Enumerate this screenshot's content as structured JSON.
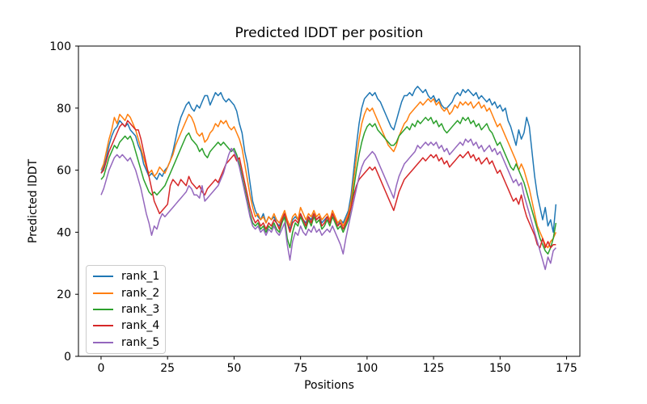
{
  "chart_data": {
    "type": "line",
    "title": "Predicted lDDT per position",
    "xlabel": "Positions",
    "ylabel": "Predicted lDDT",
    "xlim": [
      -8.5,
      180
    ],
    "ylim": [
      0,
      100
    ],
    "xticks": [
      0,
      25,
      50,
      75,
      100,
      125,
      150,
      175
    ],
    "yticks": [
      0,
      20,
      40,
      60,
      80,
      100
    ],
    "grid": false,
    "legend_position": "lower left",
    "x_start": 0,
    "x_step": 1,
    "series": [
      {
        "name": "rank_1",
        "color": "#1f77b4",
        "values": [
          59,
          61,
          64,
          68,
          71,
          73,
          74,
          76,
          75,
          74,
          75,
          73,
          72,
          71,
          68,
          66,
          62,
          60,
          58,
          59,
          58,
          57,
          59,
          58,
          60,
          61,
          63,
          66,
          70,
          74,
          77,
          79,
          81,
          82,
          80,
          79,
          81,
          80,
          82,
          84,
          84,
          81,
          83,
          85,
          84,
          85,
          83,
          82,
          83,
          82,
          81,
          79,
          75,
          72,
          66,
          62,
          56,
          50,
          47,
          45,
          44,
          46,
          43,
          45,
          44,
          45,
          43,
          42,
          44,
          46,
          43,
          41,
          44,
          45,
          44,
          46,
          44,
          43,
          45,
          44,
          46,
          44,
          45,
          43,
          44,
          45,
          44,
          46,
          44,
          42,
          44,
          43,
          45,
          47,
          52,
          60,
          68,
          75,
          80,
          83,
          84,
          85,
          84,
          85,
          83,
          82,
          80,
          78,
          76,
          74,
          73,
          76,
          79,
          82,
          84,
          84,
          85,
          84,
          86,
          87,
          86,
          85,
          86,
          84,
          83,
          84,
          82,
          83,
          81,
          80,
          80,
          81,
          82,
          84,
          85,
          84,
          86,
          85,
          86,
          85,
          84,
          85,
          83,
          84,
          83,
          82,
          83,
          81,
          82,
          80,
          81,
          79,
          80,
          76,
          74,
          71,
          68,
          73,
          70,
          72,
          77,
          74,
          66,
          58,
          52,
          48,
          44,
          48,
          42,
          44,
          40,
          49
        ]
      },
      {
        "name": "rank_2",
        "color": "#ff7f0e",
        "values": [
          60,
          62,
          66,
          70,
          73,
          77,
          75,
          78,
          77,
          76,
          78,
          77,
          75,
          73,
          70,
          67,
          64,
          61,
          59,
          60,
          58,
          59,
          61,
          60,
          59,
          61,
          63,
          65,
          68,
          70,
          72,
          74,
          76,
          78,
          77,
          75,
          72,
          71,
          72,
          69,
          70,
          72,
          73,
          75,
          74,
          76,
          75,
          76,
          74,
          73,
          74,
          72,
          70,
          67,
          62,
          57,
          52,
          48,
          45,
          46,
          44,
          45,
          43,
          45,
          44,
          46,
          44,
          43,
          45,
          47,
          44,
          42,
          45,
          46,
          44,
          48,
          46,
          44,
          46,
          45,
          47,
          45,
          46,
          44,
          45,
          46,
          44,
          47,
          45,
          43,
          44,
          42,
          44,
          46,
          50,
          57,
          64,
          70,
          75,
          78,
          80,
          79,
          80,
          78,
          76,
          74,
          72,
          70,
          68,
          67,
          66,
          68,
          71,
          73,
          75,
          76,
          78,
          79,
          80,
          81,
          82,
          81,
          82,
          83,
          82,
          83,
          81,
          82,
          80,
          79,
          80,
          78,
          79,
          81,
          80,
          82,
          81,
          82,
          81,
          82,
          80,
          81,
          82,
          80,
          81,
          79,
          80,
          78,
          76,
          74,
          75,
          73,
          71,
          69,
          67,
          65,
          63,
          60,
          62,
          60,
          57,
          54,
          50,
          46,
          42,
          40,
          38,
          36,
          35,
          37,
          38,
          40
        ]
      },
      {
        "name": "rank_3",
        "color": "#2ca02c",
        "values": [
          57,
          58,
          61,
          64,
          66,
          68,
          67,
          69,
          70,
          71,
          70,
          71,
          69,
          66,
          63,
          60,
          57,
          55,
          53,
          52,
          53,
          52,
          53,
          54,
          55,
          57,
          59,
          61,
          63,
          65,
          67,
          69,
          71,
          72,
          70,
          69,
          68,
          66,
          67,
          65,
          64,
          66,
          67,
          68,
          69,
          68,
          69,
          68,
          67,
          66,
          67,
          65,
          62,
          58,
          54,
          50,
          46,
          43,
          42,
          43,
          41,
          42,
          40,
          42,
          41,
          43,
          41,
          40,
          43,
          45,
          38,
          35,
          40,
          43,
          42,
          45,
          43,
          41,
          44,
          42,
          45,
          43,
          44,
          41,
          42,
          44,
          42,
          45,
          43,
          41,
          42,
          40,
          42,
          44,
          48,
          54,
          60,
          65,
          69,
          72,
          74,
          75,
          74,
          75,
          73,
          72,
          71,
          70,
          69,
          68,
          68,
          69,
          71,
          72,
          73,
          74,
          73,
          75,
          74,
          76,
          75,
          76,
          77,
          76,
          77,
          75,
          76,
          74,
          75,
          73,
          72,
          73,
          74,
          75,
          76,
          75,
          77,
          76,
          77,
          75,
          76,
          74,
          75,
          73,
          74,
          75,
          73,
          72,
          70,
          68,
          69,
          67,
          65,
          63,
          61,
          60,
          62,
          60,
          58,
          56,
          53,
          50,
          47,
          44,
          41,
          38,
          36,
          34,
          33,
          35,
          38,
          43
        ]
      },
      {
        "name": "rank_4",
        "color": "#d62728",
        "values": [
          59,
          60,
          63,
          66,
          68,
          70,
          72,
          74,
          75,
          74,
          76,
          75,
          74,
          73,
          73,
          70,
          66,
          62,
          58,
          54,
          50,
          48,
          46,
          47,
          48,
          49,
          55,
          57,
          56,
          55,
          57,
          56,
          55,
          58,
          56,
          55,
          54,
          55,
          53,
          52,
          54,
          55,
          56,
          57,
          56,
          58,
          60,
          62,
          63,
          64,
          65,
          63,
          64,
          60,
          56,
          52,
          48,
          45,
          43,
          44,
          42,
          43,
          41,
          43,
          42,
          44,
          43,
          41,
          44,
          46,
          43,
          40,
          43,
          44,
          43,
          46,
          44,
          42,
          45,
          43,
          46,
          44,
          45,
          42,
          43,
          45,
          43,
          46,
          44,
          42,
          43,
          41,
          43,
          45,
          48,
          52,
          55,
          57,
          58,
          59,
          60,
          61,
          60,
          61,
          59,
          57,
          55,
          53,
          51,
          49,
          47,
          50,
          53,
          55,
          57,
          58,
          59,
          60,
          61,
          62,
          63,
          64,
          63,
          64,
          65,
          64,
          65,
          63,
          64,
          62,
          63,
          61,
          62,
          63,
          64,
          65,
          64,
          65,
          66,
          64,
          65,
          63,
          64,
          62,
          63,
          64,
          62,
          63,
          61,
          59,
          60,
          58,
          56,
          54,
          52,
          50,
          51,
          49,
          52,
          48,
          45,
          43,
          41,
          39,
          36,
          35,
          38,
          35,
          37,
          35,
          36,
          36
        ]
      },
      {
        "name": "rank_5",
        "color": "#9467bd",
        "values": [
          52,
          54,
          57,
          60,
          62,
          64,
          65,
          64,
          65,
          64,
          63,
          64,
          62,
          60,
          57,
          54,
          50,
          46,
          43,
          39,
          42,
          41,
          44,
          46,
          45,
          46,
          47,
          48,
          49,
          50,
          51,
          52,
          53,
          55,
          54,
          52,
          52,
          51,
          55,
          50,
          51,
          52,
          53,
          54,
          55,
          57,
          59,
          62,
          65,
          67,
          66,
          64,
          61,
          57,
          53,
          49,
          45,
          42,
          41,
          42,
          40,
          41,
          39,
          41,
          40,
          42,
          40,
          39,
          41,
          43,
          36,
          31,
          37,
          40,
          39,
          42,
          40,
          39,
          41,
          40,
          42,
          40,
          41,
          39,
          40,
          41,
          40,
          42,
          40,
          38,
          36,
          33,
          38,
          42,
          46,
          50,
          54,
          58,
          61,
          63,
          64,
          65,
          66,
          65,
          63,
          61,
          59,
          57,
          55,
          53,
          51,
          55,
          58,
          60,
          62,
          63,
          64,
          65,
          66,
          68,
          67,
          68,
          69,
          68,
          69,
          68,
          69,
          67,
          68,
          66,
          67,
          65,
          66,
          67,
          68,
          69,
          68,
          70,
          69,
          70,
          68,
          69,
          67,
          68,
          66,
          67,
          68,
          66,
          67,
          65,
          66,
          64,
          62,
          60,
          58,
          56,
          57,
          55,
          56,
          52,
          49,
          46,
          43,
          40,
          37,
          34,
          31,
          28,
          32,
          30,
          34,
          35
        ]
      }
    ]
  }
}
